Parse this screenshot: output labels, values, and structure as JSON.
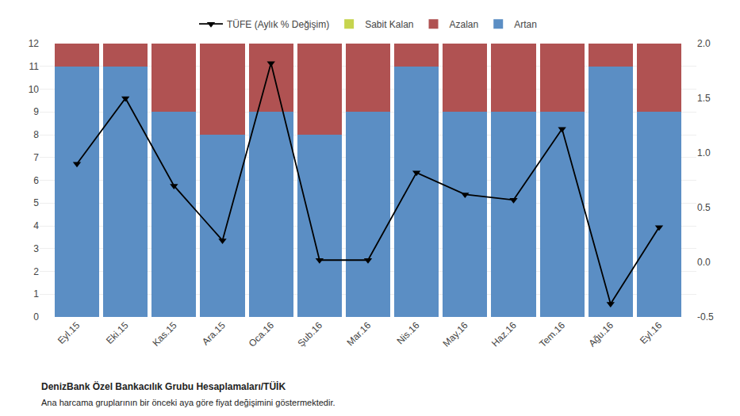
{
  "chart_data": {
    "type": "bar",
    "stacked": true,
    "categories": [
      "Eyl.15",
      "Eki.15",
      "Kas.15",
      "Ara.15",
      "Oca.16",
      "Şub.16",
      "Mar.16",
      "Nis.16",
      "May.16",
      "Haz.16",
      "Tem.16",
      "Ağu.16",
      "Eyl.16"
    ],
    "series": [
      {
        "name": "Artan",
        "color": "#5B8EC4",
        "values": [
          11,
          11,
          9,
          8,
          9,
          8,
          9,
          11,
          9,
          9,
          9,
          11,
          9
        ]
      },
      {
        "name": "Azalan",
        "color": "#B05252",
        "values": [
          1,
          1,
          3,
          4,
          3,
          4,
          3,
          1,
          3,
          3,
          3,
          1,
          3
        ]
      },
      {
        "name": "Sabit Kalan",
        "color": "#C6D44E",
        "values": [
          0,
          0,
          0,
          0,
          0,
          0,
          0,
          0,
          0,
          0,
          0,
          0,
          0
        ]
      },
      {
        "name": "TÜFE (Aylık % Değişim)",
        "color": "#000000",
        "type": "line",
        "axis": "y2",
        "marker": "triangle-down",
        "values": [
          0.9,
          1.5,
          0.7,
          0.2,
          1.82,
          0.02,
          0.02,
          0.82,
          0.62,
          0.57,
          1.22,
          -0.38,
          0.32
        ]
      }
    ],
    "ylim": [
      0,
      12
    ],
    "yticks": [
      0,
      1,
      2,
      3,
      4,
      5,
      6,
      7,
      8,
      9,
      10,
      11,
      12
    ],
    "y2lim": [
      -0.5,
      2.0
    ],
    "y2ticks": [
      -0.5,
      {
        "value": 0,
        "label": "0.0"
      },
      0.5,
      {
        "value": 1,
        "label": "1.0"
      },
      1.5,
      {
        "value": 2,
        "label": "2.0"
      }
    ],
    "grid": true,
    "legend": "top",
    "annotations": [
      "DenizBank Özel Bankacılık Grubu Hesaplamaları/TÜİK",
      "Ana harcama gruplarının bir önceki aya göre fiyat değişimini göstermektedir."
    ]
  }
}
